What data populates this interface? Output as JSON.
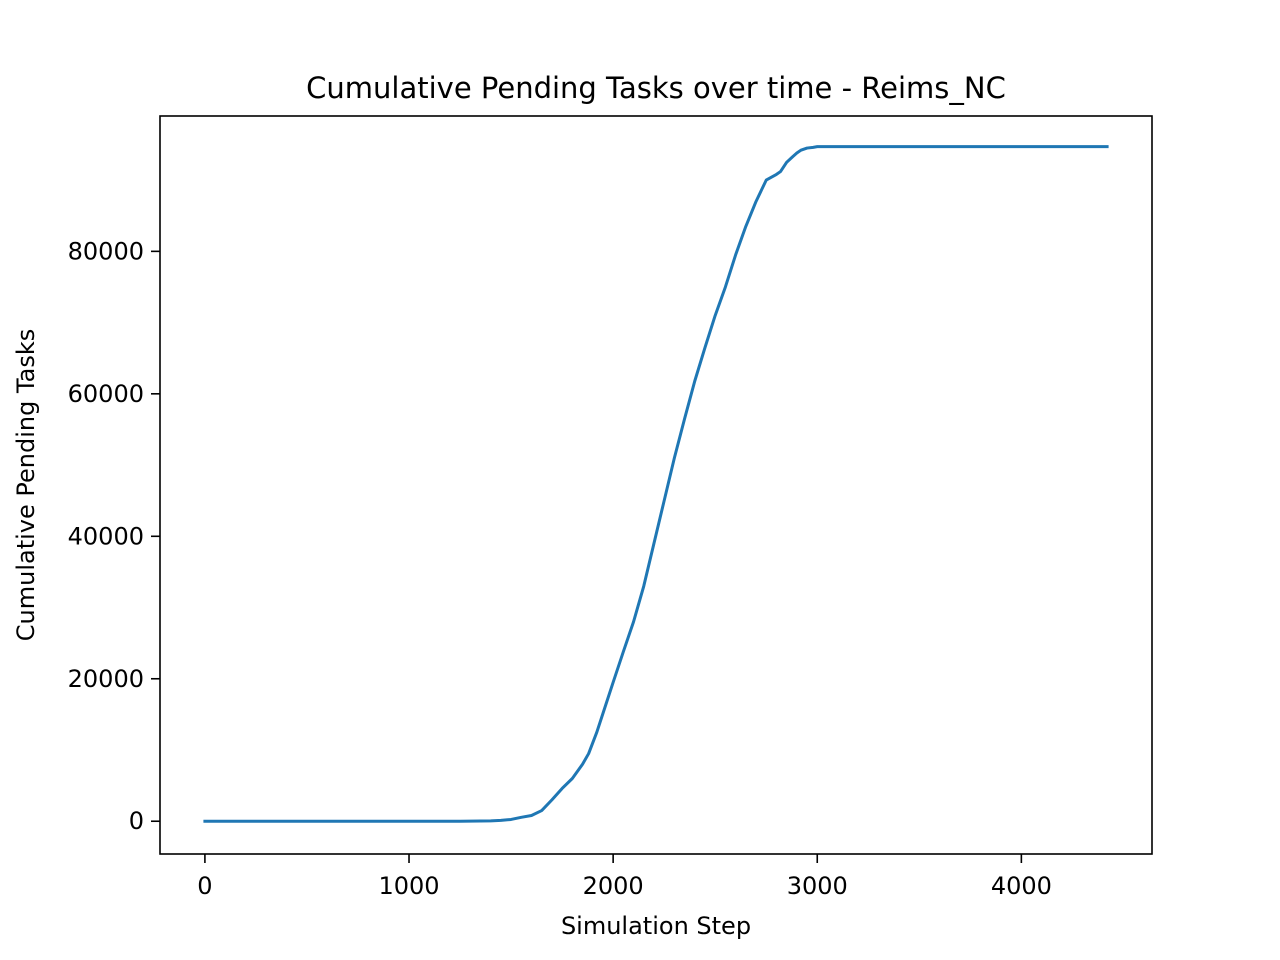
{
  "chart_data": {
    "type": "line",
    "title": "Cumulative Pending Tasks over time - Reims_NC",
    "xlabel": "Simulation Step",
    "ylabel": "Cumulative Pending Tasks",
    "xlim": [
      -220,
      4640
    ],
    "ylim": [
      -4600,
      99000
    ],
    "xticks": [
      0,
      1000,
      2000,
      3000,
      4000
    ],
    "xtick_labels": [
      "0",
      "1000",
      "2000",
      "3000",
      "4000"
    ],
    "yticks": [
      0,
      20000,
      40000,
      60000,
      80000
    ],
    "ytick_labels": [
      "0",
      "20000",
      "40000",
      "60000",
      "80000"
    ],
    "grid": false,
    "legend": "none",
    "series": [
      {
        "color": "#1f77b4",
        "x": [
          0,
          250,
          500,
          750,
          1000,
          1250,
          1400,
          1450,
          1500,
          1550,
          1600,
          1650,
          1700,
          1750,
          1800,
          1850,
          1880,
          1920,
          1960,
          2000,
          2050,
          2100,
          2150,
          2200,
          2250,
          2300,
          2350,
          2400,
          2450,
          2500,
          2550,
          2600,
          2650,
          2700,
          2750,
          2800,
          2820,
          2850,
          2880,
          2900,
          2920,
          2950,
          2980,
          3000,
          3030,
          3060,
          3100,
          3500,
          4000,
          4420
        ],
        "y": [
          0,
          0,
          0,
          0,
          0,
          0,
          50,
          120,
          250,
          550,
          800,
          1500,
          3000,
          4600,
          6000,
          8000,
          9500,
          12500,
          16000,
          19500,
          23800,
          28000,
          33000,
          39000,
          45000,
          51000,
          56500,
          61800,
          66500,
          71000,
          75000,
          79500,
          83500,
          87000,
          90000,
          90800,
          91200,
          92500,
          93300,
          93800,
          94200,
          94500,
          94600,
          94700,
          94700,
          94700,
          94700,
          94700,
          94700,
          94700
        ]
      }
    ]
  }
}
